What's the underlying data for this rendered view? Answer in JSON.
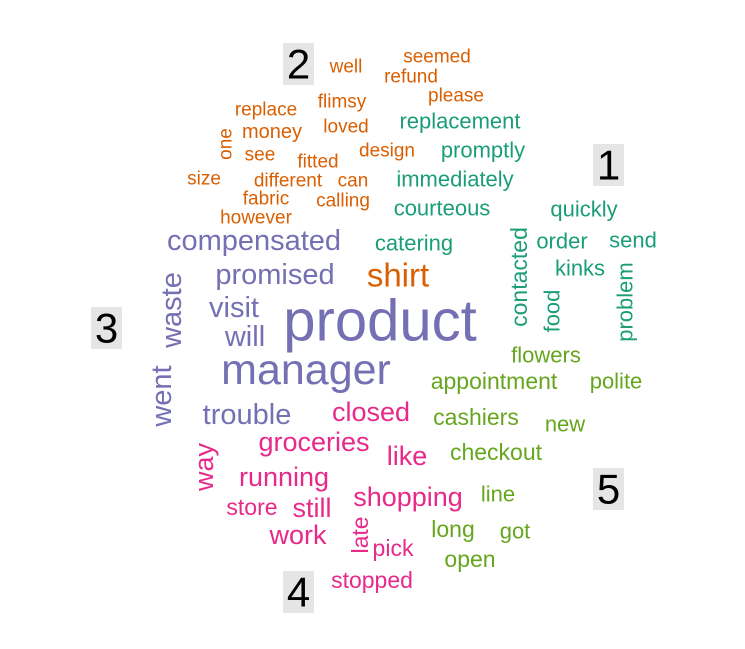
{
  "chart_data": {
    "type": "wordcloud",
    "title": "",
    "colors": {
      "1": "#1b9e77",
      "2": "#d95f02",
      "3": "#7570b3",
      "4": "#e7298a",
      "5": "#66a61e"
    },
    "clusters": [
      {
        "label": "1",
        "words": [
          "replacement",
          "promptly",
          "immediately",
          "courteous",
          "quickly",
          "catering",
          "contacted",
          "order",
          "send",
          "kinks",
          "food",
          "problem"
        ]
      },
      {
        "label": "2",
        "words": [
          "well",
          "seemed",
          "refund",
          "please",
          "replace",
          "flimsy",
          "one",
          "money",
          "loved",
          "see",
          "fitted",
          "design",
          "size",
          "different",
          "can",
          "fabric",
          "calling",
          "however",
          "shirt"
        ]
      },
      {
        "label": "3",
        "words": [
          "compensated",
          "promised",
          "waste",
          "visit",
          "product",
          "will",
          "manager",
          "went",
          "trouble"
        ]
      },
      {
        "label": "4",
        "words": [
          "closed",
          "groceries",
          "way",
          "like",
          "running",
          "store",
          "still",
          "shopping",
          "work",
          "late",
          "pick",
          "stopped"
        ]
      },
      {
        "label": "5",
        "words": [
          "flowers",
          "appointment",
          "polite",
          "cashiers",
          "new",
          "checkout",
          "line",
          "long",
          "got",
          "open"
        ]
      }
    ]
  }
}
